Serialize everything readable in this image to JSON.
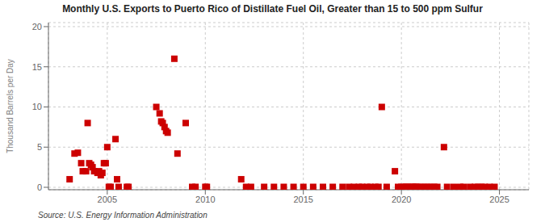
{
  "chart_data": {
    "type": "scatter",
    "title": "Monthly U.S. Exports to Puerto Rico of Distillate Fuel Oil, Greater than 15 to 500 ppm Sulfur",
    "ylabel": "Thousand Barrels per Day",
    "source": "Source: U.S. Energy Information Administration",
    "color": "#cc0000",
    "marker": "square",
    "grid": true,
    "xlim": [
      2002.0,
      2026.5
    ],
    "ylim": [
      -0.3,
      20.5
    ],
    "xticks": [
      2005,
      2010,
      2015,
      2020,
      2025
    ],
    "yticks": [
      0,
      5,
      10,
      15,
      20
    ],
    "x": [
      2003.08,
      2003.33,
      2003.5,
      2003.67,
      2003.75,
      2003.92,
      2004.0,
      2004.08,
      2004.17,
      2004.25,
      2004.33,
      2004.5,
      2004.58,
      2004.67,
      2004.75,
      2004.83,
      2004.92,
      2005.0,
      2005.08,
      2005.17,
      2005.42,
      2005.5,
      2005.58,
      2006.0,
      2006.08,
      2007.5,
      2007.67,
      2007.75,
      2007.83,
      2007.92,
      2008.0,
      2008.08,
      2008.42,
      2008.58,
      2009.0,
      2009.33,
      2009.5,
      2010.0,
      2010.08,
      2011.83,
      2012.08,
      2012.33,
      2013.0,
      2013.5,
      2014.0,
      2014.5,
      2015.0,
      2015.5,
      2016.0,
      2016.5,
      2017.0,
      2017.33,
      2017.58,
      2017.83,
      2018.0,
      2018.25,
      2018.42,
      2018.67,
      2018.83,
      2019.0,
      2019.25,
      2019.67,
      2019.83,
      2020.0,
      2020.17,
      2020.25,
      2020.33,
      2020.5,
      2020.58,
      2020.67,
      2020.75,
      2020.83,
      2021.0,
      2021.17,
      2021.33,
      2021.5,
      2021.67,
      2021.83,
      2022.17,
      2022.33,
      2022.67,
      2023.0,
      2023.17,
      2023.5,
      2023.75,
      2023.92,
      2024.08,
      2024.25,
      2024.5,
      2024.75
    ],
    "values": [
      1.0,
      4.2,
      4.3,
      3.0,
      2.0,
      2.0,
      8.0,
      3.0,
      2.8,
      2.5,
      2.0,
      1.8,
      2.0,
      1.5,
      1.8,
      3.0,
      3.0,
      5.0,
      0.05,
      0.05,
      6.0,
      1.0,
      0.05,
      0.05,
      0.05,
      10.0,
      9.2,
      8.2,
      8.0,
      7.5,
      7.0,
      6.8,
      16.0,
      4.2,
      8.0,
      0.05,
      0.05,
      0.05,
      0.05,
      1.0,
      0.05,
      0.05,
      0.05,
      0.05,
      0.05,
      0.05,
      0.05,
      0.05,
      0.05,
      0.05,
      0.05,
      0.05,
      0.05,
      0.05,
      0.05,
      0.05,
      0.05,
      0.05,
      0.05,
      10.0,
      0.05,
      2.0,
      0.05,
      0.05,
      0.05,
      0.05,
      0.05,
      0.05,
      0.05,
      0.05,
      0.05,
      0.05,
      0.05,
      0.05,
      0.05,
      0.05,
      0.05,
      0.05,
      5.0,
      0.05,
      0.05,
      0.05,
      0.05,
      0.05,
      0.05,
      0.05,
      0.05,
      0.05,
      0.05,
      0.05
    ]
  }
}
